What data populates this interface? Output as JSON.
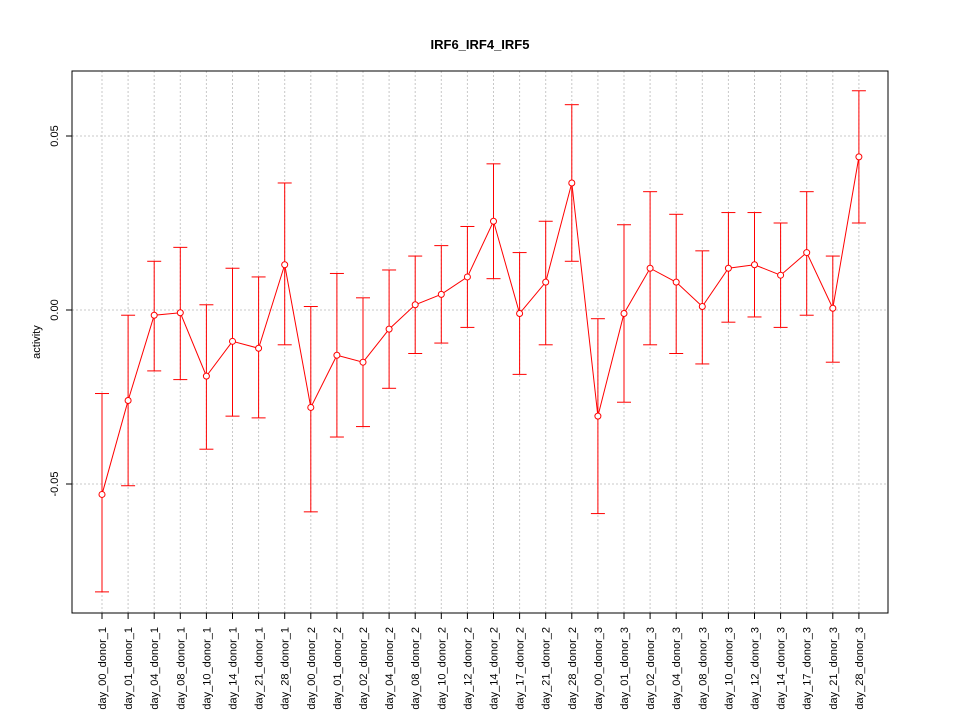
{
  "chart_data": {
    "type": "line",
    "title": "IRF6_IRF4_IRF5",
    "xlabel": "",
    "ylabel": "activity",
    "ylim": [
      -0.087,
      0.069
    ],
    "y_ticks": [
      -0.05,
      0.0,
      0.05
    ],
    "y_tick_labels": [
      "-0.05",
      "0.00",
      "0.05"
    ],
    "grid": true,
    "color": "#ff0000",
    "categories": [
      "day_00_donor_1",
      "day_01_donor_1",
      "day_04_donor_1",
      "day_08_donor_1",
      "day_10_donor_1",
      "day_14_donor_1",
      "day_21_donor_1",
      "day_28_donor_1",
      "day_00_donor_2",
      "day_01_donor_2",
      "day_02_donor_2",
      "day_04_donor_2",
      "day_08_donor_2",
      "day_10_donor_2",
      "day_12_donor_2",
      "day_14_donor_2",
      "day_17_donor_2",
      "day_21_donor_2",
      "day_28_donor_2",
      "day_00_donor_3",
      "day_01_donor_3",
      "day_02_donor_3",
      "day_04_donor_3",
      "day_08_donor_3",
      "day_10_donor_3",
      "day_12_donor_3",
      "day_14_donor_3",
      "day_17_donor_3",
      "day_21_donor_3",
      "day_28_donor_3"
    ],
    "values": [
      -0.053,
      -0.026,
      -0.0015,
      -0.0008,
      -0.019,
      -0.009,
      -0.011,
      0.013,
      -0.028,
      -0.013,
      -0.015,
      -0.0055,
      0.0015,
      0.0045,
      0.0095,
      0.0255,
      -0.001,
      0.008,
      0.0365,
      -0.0305,
      -0.001,
      0.012,
      0.008,
      0.001,
      0.012,
      0.013,
      0.01,
      0.0165,
      0.0005,
      0.044
    ],
    "err_low": [
      -0.081,
      -0.0505,
      -0.0175,
      -0.02,
      -0.04,
      -0.0305,
      -0.031,
      -0.01,
      -0.058,
      -0.0365,
      -0.0335,
      -0.0225,
      -0.0125,
      -0.0095,
      -0.005,
      0.009,
      -0.0185,
      -0.01,
      0.014,
      -0.0585,
      -0.0265,
      -0.01,
      -0.0125,
      -0.0155,
      -0.0035,
      -0.002,
      -0.005,
      -0.0015,
      -0.015,
      0.025
    ],
    "err_high": [
      -0.024,
      -0.0015,
      0.014,
      0.018,
      0.0015,
      0.012,
      0.0095,
      0.0365,
      0.001,
      0.0105,
      0.0035,
      0.0115,
      0.0155,
      0.0185,
      0.024,
      0.042,
      0.0165,
      0.0255,
      0.059,
      -0.0025,
      0.0245,
      0.034,
      0.0275,
      0.017,
      0.028,
      0.028,
      0.025,
      0.034,
      0.0155,
      0.063
    ]
  }
}
